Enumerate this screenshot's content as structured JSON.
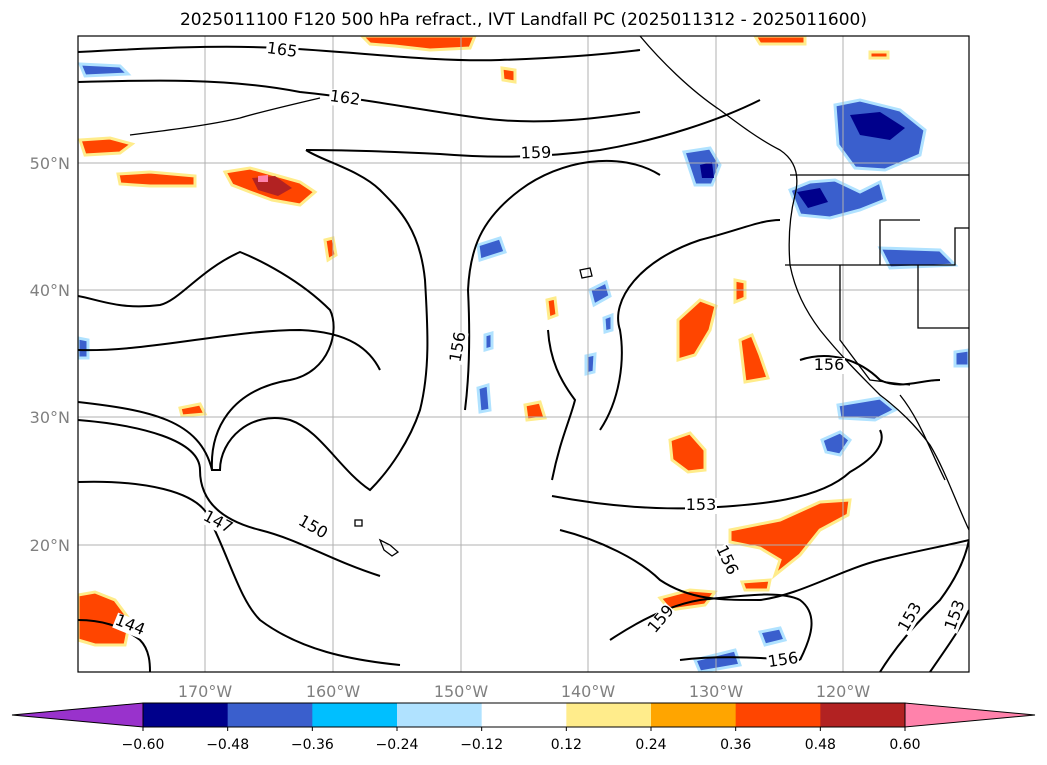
{
  "title": "2025011100 F120 500 hPa refract., IVT Landfall PC (2025011312 - 2025011600)",
  "longitude_labels": [
    "170°W",
    "160°W",
    "150°W",
    "140°W",
    "130°W",
    "120°W"
  ],
  "latitude_labels": [
    "50°N",
    "40°N",
    "30°N",
    "20°N"
  ],
  "contour_labels": [
    "165",
    "162",
    "159",
    "156",
    "156",
    "153",
    "156",
    "159",
    "156",
    "153",
    "153",
    "150",
    "147",
    "144"
  ],
  "colorbar": {
    "ticks": [
      "−0.60",
      "−0.48",
      "−0.36",
      "−0.24",
      "−0.12",
      "0.12",
      "0.24",
      "0.36",
      "0.48",
      "0.60"
    ],
    "colors": [
      "#9932cc",
      "#00008b",
      "#3a5fcd",
      "#00bfff",
      "#b0e2ff",
      "#ffffff",
      "#ffec8b",
      "#ffa500",
      "#ff4500",
      "#b22222",
      "#ff82ab"
    ],
    "extend": "both"
  },
  "colors": {
    "grid": "#b0b0b0",
    "contour": "#000000",
    "coast": "#000000"
  }
}
